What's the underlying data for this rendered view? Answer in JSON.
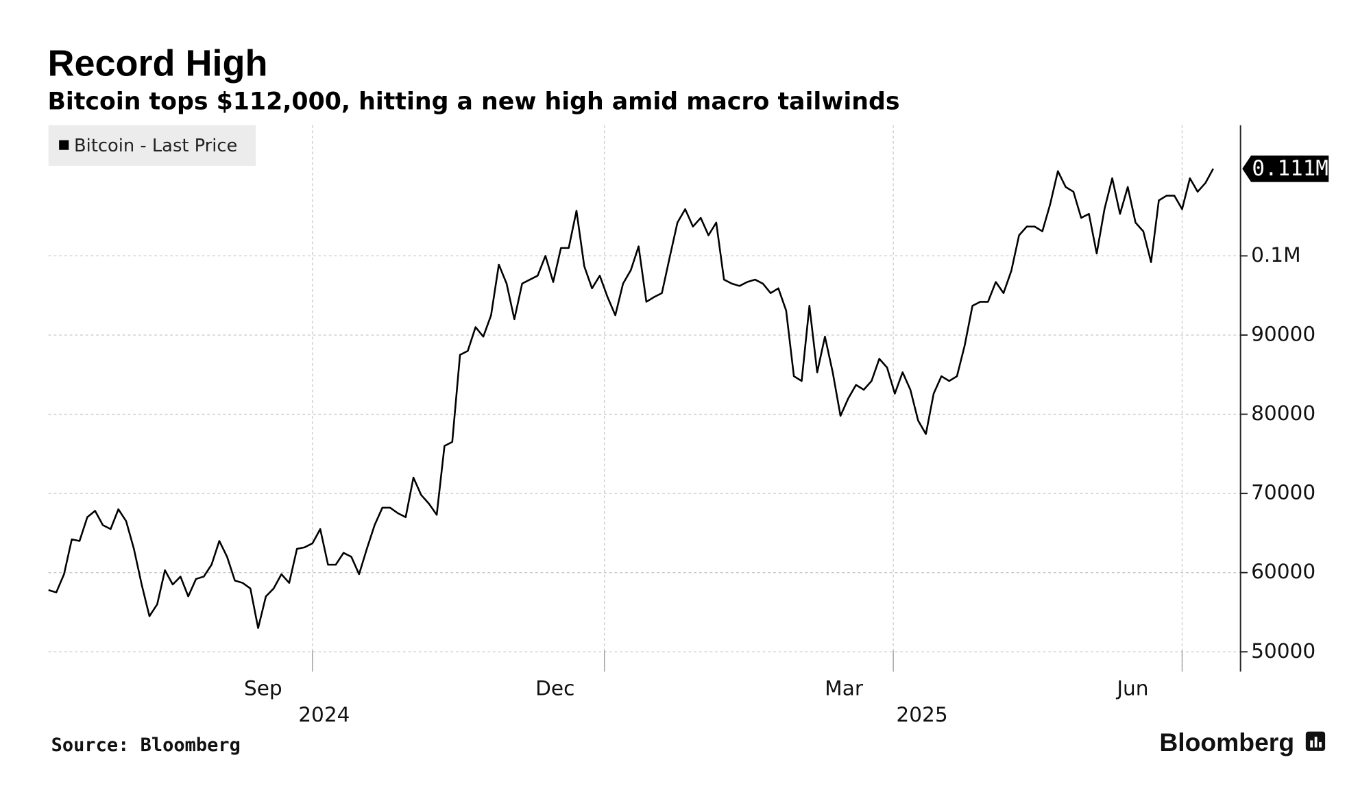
{
  "chart_data": {
    "type": "line",
    "title": "Record High",
    "subtitle": "Bitcoin tops $112,000, hitting a new high amid macro tailwinds",
    "source": "Source: Bloomberg",
    "brand": "Bloomberg",
    "legend": "top-left",
    "grid": true,
    "series": [
      {
        "name": "Bitcoin - Last Price",
        "color": "#000000",
        "values": [
          57800,
          57500,
          59800,
          64200,
          64000,
          67000,
          67800,
          66000,
          65500,
          68000,
          66500,
          63000,
          58500,
          54500,
          56000,
          60300,
          58500,
          59500,
          57000,
          59200,
          59500,
          61000,
          64000,
          62000,
          59000,
          58700,
          58000,
          53000,
          57000,
          58000,
          59800,
          58700,
          63000,
          63200,
          63700,
          65500,
          61000,
          61000,
          62500,
          62000,
          59800,
          63000,
          66000,
          68200,
          68200,
          67500,
          67000,
          72000,
          69800,
          68700,
          67300,
          76000,
          76500,
          87500,
          88000,
          91000,
          89800,
          92500,
          98900,
          96500,
          92000,
          96500,
          97000,
          97500,
          100000,
          96700,
          101000,
          101000,
          105700,
          98700,
          95900,
          97500,
          94800,
          92500,
          96500,
          98200,
          101200,
          94200,
          94800,
          95300,
          99800,
          104200,
          105900,
          103700,
          104800,
          102600,
          104200,
          97000,
          96500,
          96200,
          96700,
          97000,
          96500,
          95300,
          95900,
          93100,
          84800,
          84200,
          93700,
          85300,
          89800,
          85300,
          79800,
          82000,
          83700,
          83100,
          84200,
          87000,
          85900,
          82600,
          85300,
          83100,
          79200,
          77500,
          82600,
          84800,
          84200,
          84800,
          88700,
          93700,
          94200,
          94200,
          96700,
          95300,
          98100,
          102600,
          103700,
          103700,
          103100,
          106500,
          110700,
          108700,
          108100,
          104800,
          105300,
          100300,
          105900,
          109800,
          105300,
          108700,
          104200,
          103100,
          99200,
          107000,
          107600,
          107600,
          105900,
          109800,
          108100,
          109200,
          111000
        ],
        "last_label": "0.111M"
      }
    ],
    "xlim": [
      0,
      150
    ],
    "xticks": [
      {
        "value": 34,
        "label": "Sep"
      },
      {
        "value": 71.6,
        "label": "Dec"
      },
      {
        "value": 108.8,
        "label": "Mar"
      },
      {
        "value": 146,
        "label": "Jun"
      }
    ],
    "year_labels": [
      {
        "value": 35.5,
        "label": "2024"
      },
      {
        "value": 112.5,
        "label": "2025"
      }
    ],
    "ylim": [
      47500,
      116500
    ],
    "yticks": [
      50000,
      60000,
      70000,
      80000,
      90000,
      {
        "value": 100000,
        "label": "0.1M"
      }
    ]
  }
}
